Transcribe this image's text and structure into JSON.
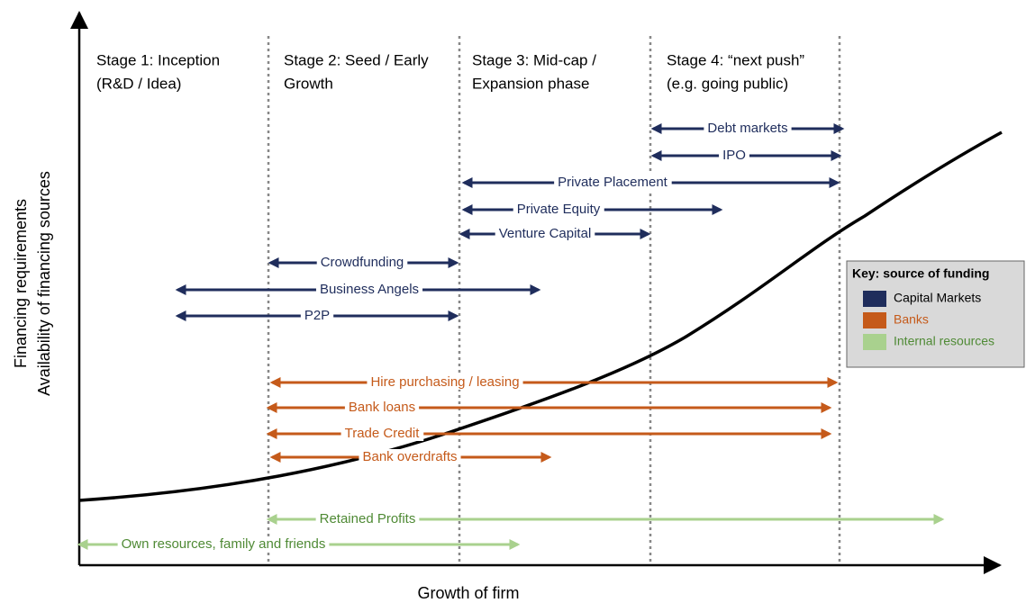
{
  "axes": {
    "y_label_lines": [
      "Financing requirements",
      "Availability of financing sources"
    ],
    "x_label": "Growth of firm"
  },
  "stages": [
    [
      "Stage 1: Inception",
      "(R&D / Idea)"
    ],
    [
      "Stage 2: Seed / Early",
      "Growth"
    ],
    [
      "Stage 3: Mid-cap /",
      "Expansion phase"
    ],
    [
      "Stage 4: “next push”",
      "(e.g. going public)"
    ]
  ],
  "key": {
    "title": "Key: source of funding",
    "sources": [
      {
        "name": "Capital Markets",
        "color": "#1f2d5c",
        "label_color": "#000000",
        "arrows": [
          "Debt markets",
          "IPO",
          "Private Placement",
          "Private Equity",
          "Venture Capital",
          "Crowdfunding",
          "Business Angels",
          "P2P"
        ]
      },
      {
        "name": "Banks",
        "color": "#c55a1a",
        "label_color": "#c55a1a",
        "arrows": [
          "Hire purchasing / leasing",
          "Bank loans",
          "Trade Credit",
          "Bank overdrafts"
        ]
      },
      {
        "name": "Internal resources",
        "color": "#a9d18e",
        "label_color": "#4f8a35",
        "arrows": [
          "Retained Profits",
          "Own resources, family and friends"
        ]
      }
    ]
  }
}
